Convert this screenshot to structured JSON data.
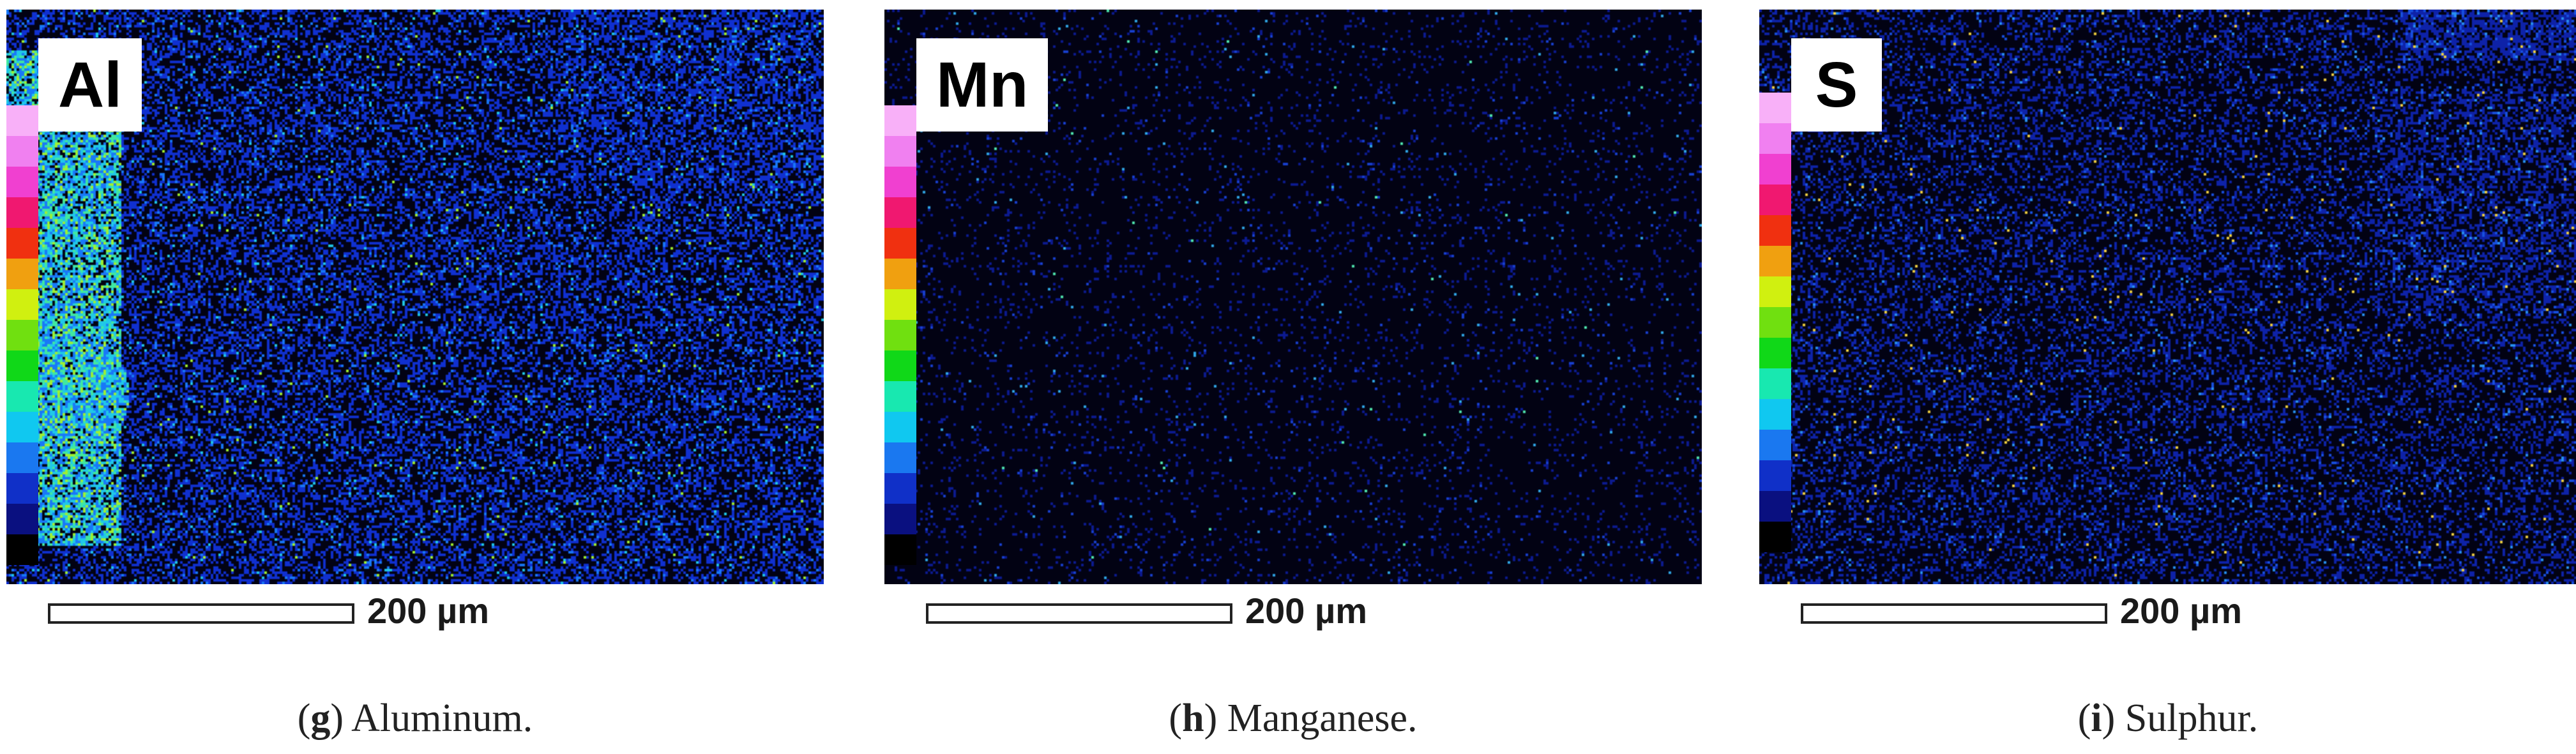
{
  "colors": {
    "background": "#020213",
    "colorbar_scale": [
      "#000000",
      "#0a1080",
      "#1030c8",
      "#1a78f0",
      "#10c8f0",
      "#18e8b0",
      "#10d818",
      "#70e010",
      "#d0f010",
      "#f0a010",
      "#f03010",
      "#f01870",
      "#f040d0",
      "#f080f0",
      "#f8b0f8"
    ]
  },
  "panels": [
    {
      "id": "g",
      "element": "Al",
      "caption_letter": "g",
      "caption_text": "Aluminum.",
      "scale_label": "200 µm",
      "density": "high",
      "accent_colors": [
        "#1030d0",
        "#1878f8",
        "#20c8e8",
        "#40e8a0",
        "#a0f030"
      ]
    },
    {
      "id": "h",
      "element": "Mn",
      "caption_letter": "h",
      "caption_text": "Manganese.",
      "scale_label": "200 µm",
      "density": "low",
      "accent_colors": [
        "#0c1a90",
        "#1840d0",
        "#30a8e8",
        "#50e8b0"
      ]
    },
    {
      "id": "i",
      "element": "S",
      "caption_letter": "i",
      "caption_text": "Sulphur.",
      "scale_label": "200 µm",
      "density": "medium",
      "accent_colors": [
        "#0e22a8",
        "#1850e0",
        "#2890f0",
        "#40d0e8",
        "#f0d040"
      ]
    }
  ]
}
